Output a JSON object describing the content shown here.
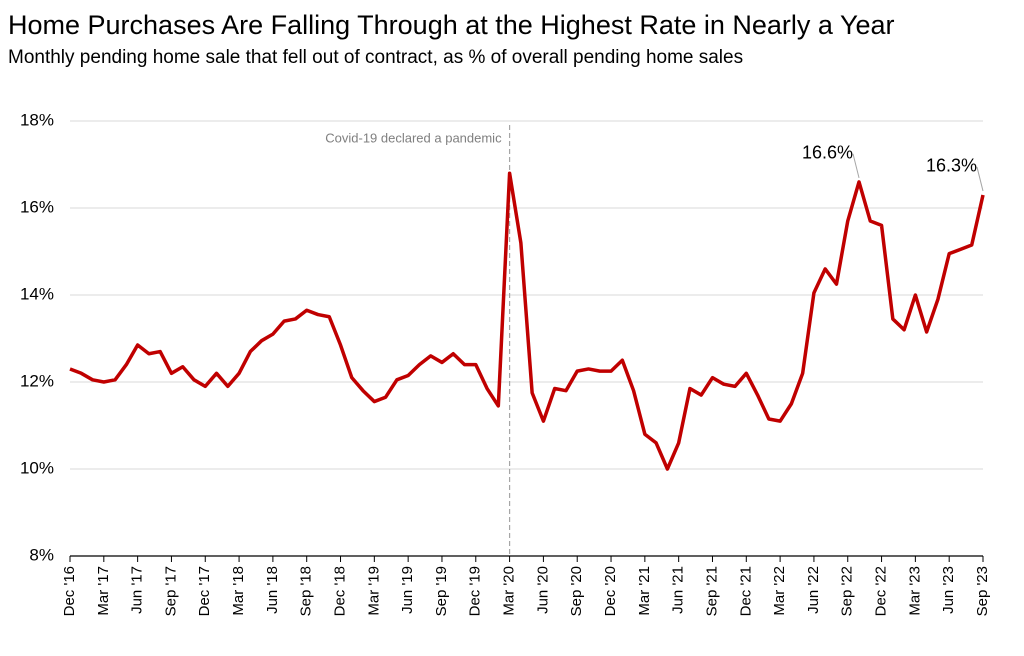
{
  "chart_data": {
    "type": "line",
    "title": "Home Purchases Are Falling Through at the Highest Rate in Nearly a Year",
    "subtitle": "Monthly pending home sale that fell out of contract, as % of overall pending home sales",
    "categories": [
      "Dec '16",
      null,
      null,
      "Mar '17",
      null,
      null,
      "Jun '17",
      null,
      null,
      "Sep '17",
      null,
      null,
      "Dec '17",
      null,
      null,
      "Mar '18",
      null,
      null,
      "Jun '18",
      null,
      null,
      "Sep '18",
      null,
      null,
      "Dec '18",
      null,
      null,
      "Mar '19",
      null,
      null,
      "Jun '19",
      null,
      null,
      "Sep '19",
      null,
      null,
      "Dec '19",
      null,
      null,
      "Mar '20",
      null,
      null,
      "Jun '20",
      null,
      null,
      "Sep '20",
      null,
      null,
      "Dec '20",
      null,
      null,
      "Mar '21",
      null,
      null,
      "Jun '21",
      null,
      null,
      "Sep '21",
      null,
      null,
      "Dec '21",
      null,
      null,
      "Mar '22",
      null,
      null,
      "Jun '22",
      null,
      null,
      "Sep '22",
      null,
      null,
      "Dec '22",
      null,
      null,
      "Mar '23",
      null,
      null,
      "Jun '23",
      null,
      null,
      "Sep '23"
    ],
    "series": [
      {
        "name": "Pending sales fallen out of contract",
        "color": "#c00000",
        "values": [
          12.3,
          12.2,
          12.05,
          12.0,
          12.05,
          12.4,
          12.85,
          12.65,
          12.7,
          12.2,
          12.35,
          12.05,
          11.9,
          12.2,
          11.9,
          12.2,
          12.7,
          12.95,
          13.1,
          13.4,
          13.45,
          13.65,
          13.55,
          13.5,
          12.85,
          12.1,
          11.8,
          11.55,
          11.65,
          12.05,
          12.15,
          12.4,
          12.6,
          12.45,
          12.65,
          12.4,
          12.4,
          11.85,
          11.45,
          16.8,
          15.2,
          11.75,
          11.1,
          11.85,
          11.8,
          12.25,
          12.3,
          12.25,
          12.25,
          12.5,
          11.8,
          10.8,
          10.6,
          10.0,
          10.6,
          11.85,
          11.7,
          12.1,
          11.95,
          11.9,
          12.2,
          11.7,
          11.15,
          11.1,
          11.5,
          12.2,
          14.05,
          14.6,
          14.25,
          15.7,
          16.6,
          15.7,
          15.6,
          13.45,
          13.2,
          14.0,
          13.15,
          13.9,
          14.95,
          15.05,
          15.15,
          16.3
        ],
        "value_labels": [
          null,
          null,
          null,
          null,
          null,
          null,
          null,
          null,
          null,
          null,
          null,
          null,
          null,
          null,
          null,
          null,
          null,
          null,
          null,
          null,
          null,
          null,
          null,
          null,
          null,
          null,
          null,
          null,
          null,
          null,
          null,
          null,
          null,
          null,
          null,
          null,
          null,
          null,
          null,
          null,
          null,
          null,
          null,
          null,
          null,
          null,
          null,
          null,
          null,
          null,
          null,
          null,
          null,
          null,
          null,
          null,
          null,
          null,
          null,
          null,
          null,
          null,
          null,
          null,
          null,
          null,
          null,
          null,
          null,
          null,
          "16.6%",
          null,
          null,
          null,
          null,
          null,
          null,
          null,
          null,
          null,
          null,
          "16.3%"
        ]
      }
    ],
    "ylim": [
      8,
      18
    ],
    "yticks": [
      {
        "value": 8,
        "label": "8%"
      },
      {
        "value": 10,
        "label": "10%"
      },
      {
        "value": 12,
        "label": "12%"
      },
      {
        "value": 14,
        "label": "14%"
      },
      {
        "value": 16,
        "label": "16%"
      },
      {
        "value": 18,
        "label": "18%"
      }
    ],
    "grid": true,
    "annotations": [
      {
        "text": "Covid-19 declared a pandemic",
        "x": "Mar '20"
      }
    ]
  }
}
